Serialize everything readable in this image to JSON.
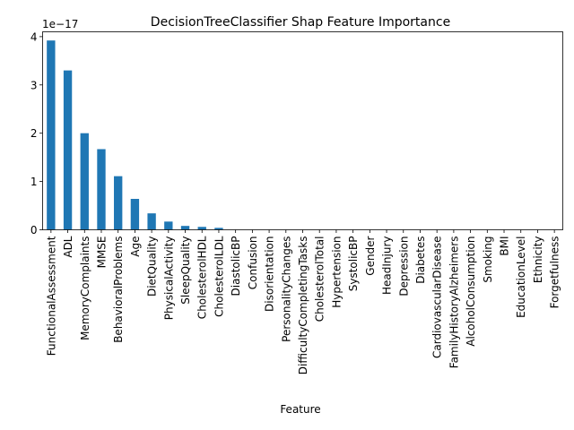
{
  "chart_data": {
    "type": "bar",
    "title": "DecisionTreeClassifier Shap Feature Importance",
    "xlabel": "Feature",
    "ylabel": "",
    "y_offset_label": "1e−17",
    "scale_exponent": -17,
    "ylim": [
      0,
      4.1
    ],
    "yticks": [
      0,
      1,
      2,
      3,
      4
    ],
    "ytick_labels": [
      "0",
      "1",
      "2",
      "3",
      "4"
    ],
    "grid": false,
    "legend": false,
    "bar_color": "#1f77b4",
    "categories": [
      "FunctionalAssessment",
      "ADL",
      "MemoryComplaints",
      "MMSE",
      "BehavioralProblems",
      "Age",
      "DietQuality",
      "PhysicalActivity",
      "SleepQuality",
      "CholesterolHDL",
      "CholesterolLDL",
      "DiastolicBP",
      "Confusion",
      "Disorientation",
      "PersonalityChanges",
      "DifficultyCompletingTasks",
      "CholesterolTotal",
      "Hypertension",
      "SystolicBP",
      "Gender",
      "HeadInjury",
      "Depression",
      "Diabetes",
      "CardiovascularDisease",
      "FamilyHistoryAlzheimers",
      "AlcoholConsumption",
      "Smoking",
      "BMI",
      "EducationLevel",
      "Ethnicity",
      "Forgetfulness"
    ],
    "values": [
      3.92,
      3.3,
      2.0,
      1.67,
      1.11,
      0.64,
      0.34,
      0.17,
      0.08,
      0.06,
      0.04,
      0,
      0,
      0,
      0,
      0,
      0,
      0,
      0,
      0,
      0,
      0,
      0,
      0,
      0,
      0,
      0,
      0,
      0,
      0,
      0
    ]
  }
}
